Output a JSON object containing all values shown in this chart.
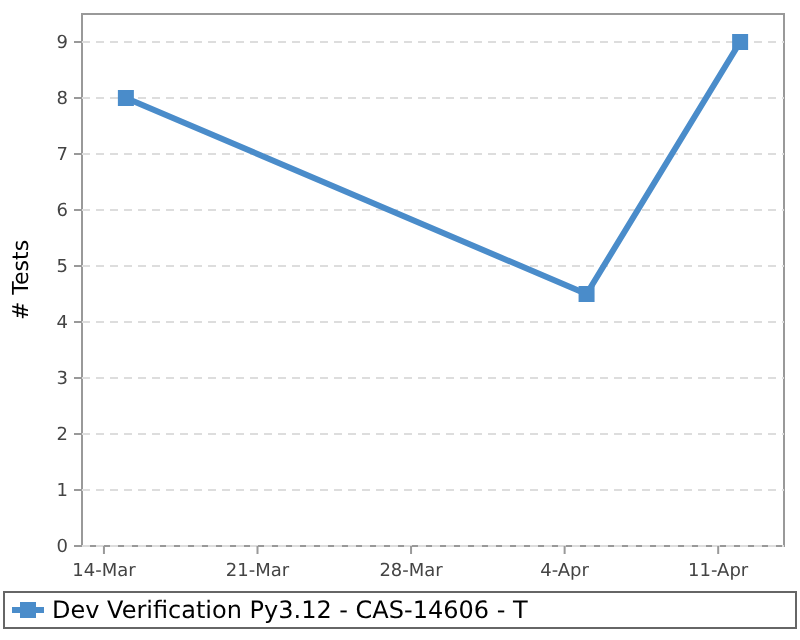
{
  "chart_data": {
    "type": "line",
    "ylabel": "# Tests",
    "x": [
      "--03-15",
      "--04-05",
      "--04-12"
    ],
    "series": [
      {
        "name": "Dev Verification Py3.12 - CAS-14606 - T",
        "color": "#4a8cca",
        "values": [
          8,
          4.5,
          9
        ]
      }
    ],
    "xlim": [
      "--03-13",
      "--04-14"
    ],
    "xticks": [
      {
        "value": "--03-14",
        "label": "14-Mar"
      },
      {
        "value": "--03-21",
        "label": "21-Mar"
      },
      {
        "value": "--03-28",
        "label": "28-Mar"
      },
      {
        "value": "--04-04",
        "label": "4-Apr"
      },
      {
        "value": "--04-11",
        "label": "11-Apr"
      }
    ],
    "ylim": [
      0,
      9.5
    ],
    "yticks": [
      0,
      1,
      2,
      3,
      4,
      5,
      6,
      7,
      8,
      9
    ],
    "grid": "y",
    "legend": "bottom",
    "marker": "square",
    "line_style": "solid"
  }
}
